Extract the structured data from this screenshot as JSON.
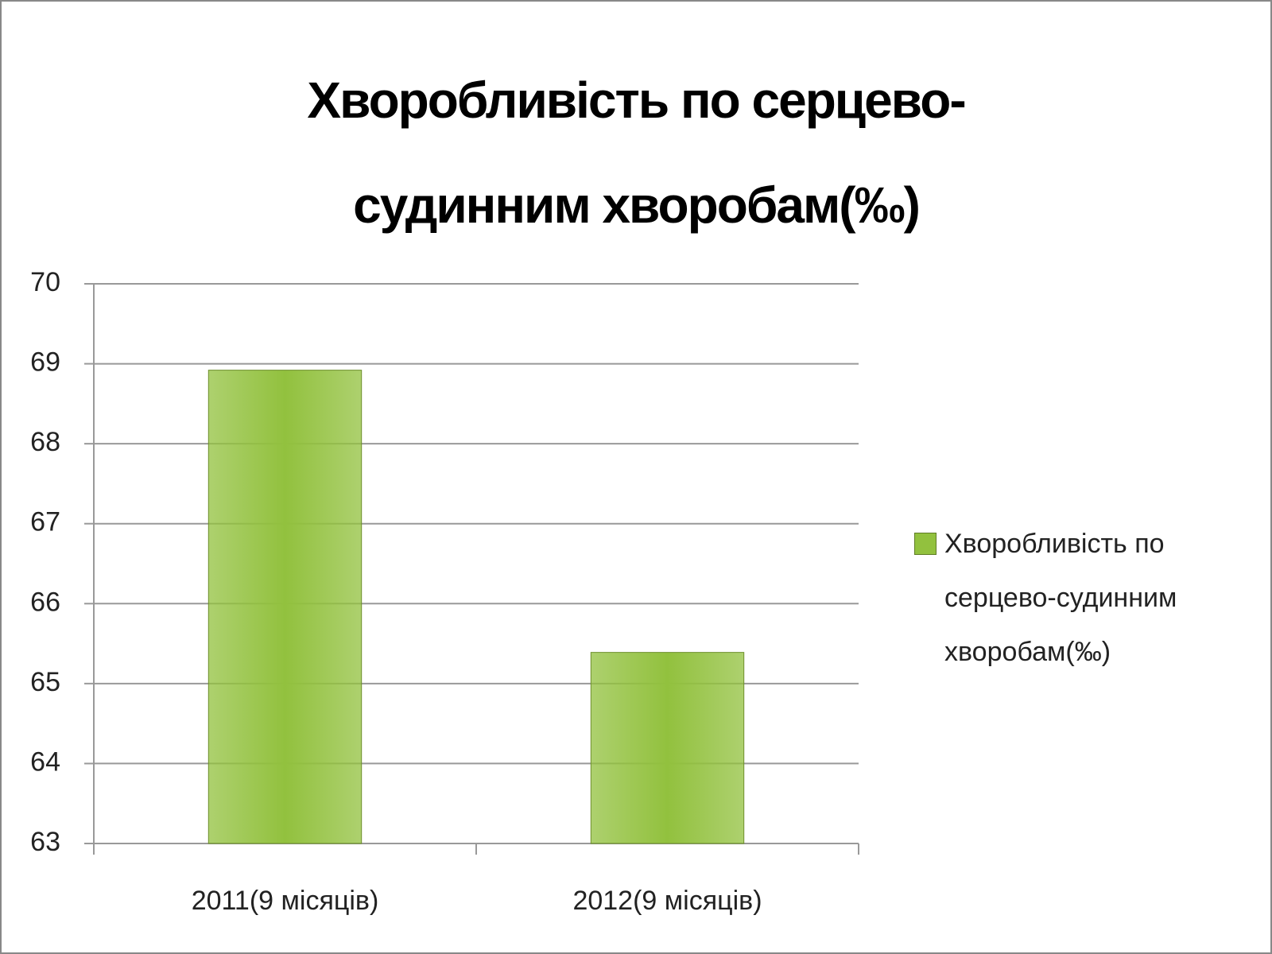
{
  "chart_data": {
    "type": "bar",
    "title": "Хворобливість по серцево-судинним хворобам(‰)",
    "categories": [
      "2011(9 місяців)",
      "2012(9 місяців)"
    ],
    "series": [
      {
        "name": "Хворобливість по серцево-судинним хворобам(‰)",
        "color": "#92c13e",
        "values": [
          68.92,
          65.39
        ]
      }
    ],
    "ylim": [
      63,
      70
    ],
    "yticks": [
      63,
      64,
      65,
      66,
      67,
      68,
      69,
      70
    ],
    "grid": true,
    "legend": "right"
  }
}
